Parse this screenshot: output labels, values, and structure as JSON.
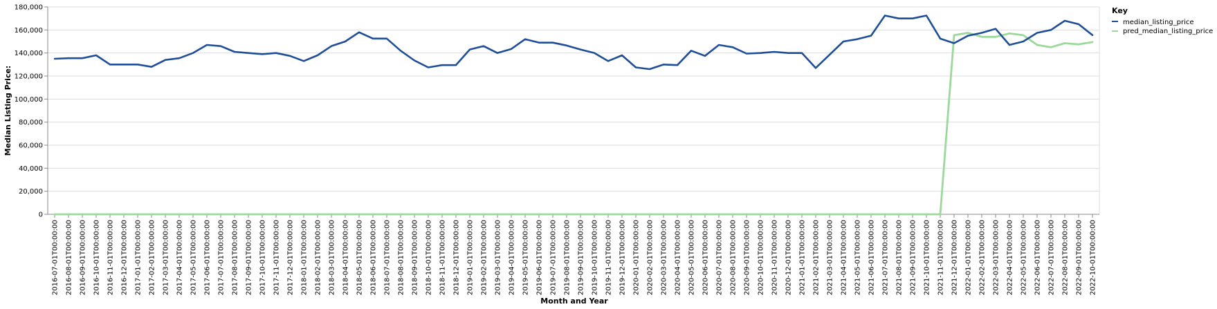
{
  "chart_data": {
    "type": "line",
    "title": "",
    "xlabel": "Month and Year",
    "ylabel": "Median Listing Price:",
    "ylim": [
      0,
      180000
    ],
    "yticks": [
      0,
      20000,
      40000,
      60000,
      80000,
      100000,
      120000,
      140000,
      160000,
      180000
    ],
    "ytick_labels": [
      "0",
      "20,000",
      "40,000",
      "60,000",
      "80,000",
      "100,000",
      "120,000",
      "140,000",
      "160,000",
      "180,000"
    ],
    "grid": true,
    "legend": {
      "title": "Key",
      "position": "right"
    },
    "categories": [
      "2016-07-01T00:00:00",
      "2016-08-01T00:00:00",
      "2016-09-01T00:00:00",
      "2016-10-01T00:00:00",
      "2016-11-01T00:00:00",
      "2016-12-01T00:00:00",
      "2017-01-01T00:00:00",
      "2017-02-01T00:00:00",
      "2017-03-01T00:00:00",
      "2017-04-01T00:00:00",
      "2017-05-01T00:00:00",
      "2017-06-01T00:00:00",
      "2017-07-01T00:00:00",
      "2017-08-01T00:00:00",
      "2017-09-01T00:00:00",
      "2017-10-01T00:00:00",
      "2017-11-01T00:00:00",
      "2017-12-01T00:00:00",
      "2018-01-01T00:00:00",
      "2018-02-01T00:00:00",
      "2018-03-01T00:00:00",
      "2018-04-01T00:00:00",
      "2018-05-01T00:00:00",
      "2018-06-01T00:00:00",
      "2018-07-01T00:00:00",
      "2018-08-01T00:00:00",
      "2018-09-01T00:00:00",
      "2018-10-01T00:00:00",
      "2018-11-01T00:00:00",
      "2018-12-01T00:00:00",
      "2019-01-01T00:00:00",
      "2019-02-01T00:00:00",
      "2019-03-01T00:00:00",
      "2019-04-01T00:00:00",
      "2019-05-01T00:00:00",
      "2019-06-01T00:00:00",
      "2019-07-01T00:00:00",
      "2019-08-01T00:00:00",
      "2019-09-01T00:00:00",
      "2019-10-01T00:00:00",
      "2019-11-01T00:00:00",
      "2019-12-01T00:00:00",
      "2020-01-01T00:00:00",
      "2020-02-01T00:00:00",
      "2020-03-01T00:00:00",
      "2020-04-01T00:00:00",
      "2020-05-01T00:00:00",
      "2020-06-01T00:00:00",
      "2020-07-01T00:00:00",
      "2020-08-01T00:00:00",
      "2020-09-01T00:00:00",
      "2020-10-01T00:00:00",
      "2020-11-01T00:00:00",
      "2020-12-01T00:00:00",
      "2021-01-01T00:00:00",
      "2021-02-01T00:00:00",
      "2021-03-01T00:00:00",
      "2021-04-01T00:00:00",
      "2021-05-01T00:00:00",
      "2021-06-01T00:00:00",
      "2021-07-01T00:00:00",
      "2021-08-01T00:00:00",
      "2021-09-01T00:00:00",
      "2021-10-01T00:00:00",
      "2021-11-01T00:00:00",
      "2021-12-01T00:00:00",
      "2022-01-01T00:00:00",
      "2022-02-01T00:00:00",
      "2022-03-01T00:00:00",
      "2022-04-01T00:00:00",
      "2022-05-01T00:00:00",
      "2022-06-01T00:00:00",
      "2022-07-01T00:00:00",
      "2022-08-01T00:00:00",
      "2022-09-01T00:00:00",
      "2022-10-01T00:00:00"
    ],
    "series": [
      {
        "name": "median_listing_price",
        "color": "#1f4e99",
        "values": [
          135000,
          135500,
          135500,
          138000,
          130000,
          130000,
          130000,
          128000,
          134000,
          135500,
          140000,
          147000,
          146000,
          141000,
          140000,
          139000,
          140000,
          137500,
          133000,
          138000,
          146000,
          150000,
          158000,
          152500,
          152500,
          142000,
          133500,
          127500,
          129500,
          129500,
          143000,
          146000,
          140000,
          143500,
          152000,
          149000,
          149000,
          146500,
          143000,
          140000,
          133000,
          138000,
          127500,
          126000,
          130000,
          129500,
          142000,
          137500,
          147000,
          145000,
          139500,
          140000,
          141000,
          140000,
          140000,
          127000,
          138500,
          150000,
          152000,
          155000,
          172500,
          170000,
          170000,
          172500,
          152500,
          148500,
          155000,
          157500,
          161000,
          147000,
          150000,
          157500,
          160000,
          168000,
          165000,
          155500
        ]
      },
      {
        "name": "pred_median_listing_price",
        "color": "#9bd99b",
        "values": [
          0,
          0,
          0,
          0,
          0,
          0,
          0,
          0,
          0,
          0,
          0,
          0,
          0,
          0,
          0,
          0,
          0,
          0,
          0,
          0,
          0,
          0,
          0,
          0,
          0,
          0,
          0,
          0,
          0,
          0,
          0,
          0,
          0,
          0,
          0,
          0,
          0,
          0,
          0,
          0,
          0,
          0,
          0,
          0,
          0,
          0,
          0,
          0,
          0,
          0,
          0,
          0,
          0,
          0,
          0,
          0,
          0,
          0,
          0,
          0,
          0,
          0,
          0,
          0,
          0,
          155500,
          157500,
          154000,
          154000,
          157000,
          155500,
          147000,
          145000,
          148500,
          147500,
          149500
        ]
      }
    ]
  }
}
